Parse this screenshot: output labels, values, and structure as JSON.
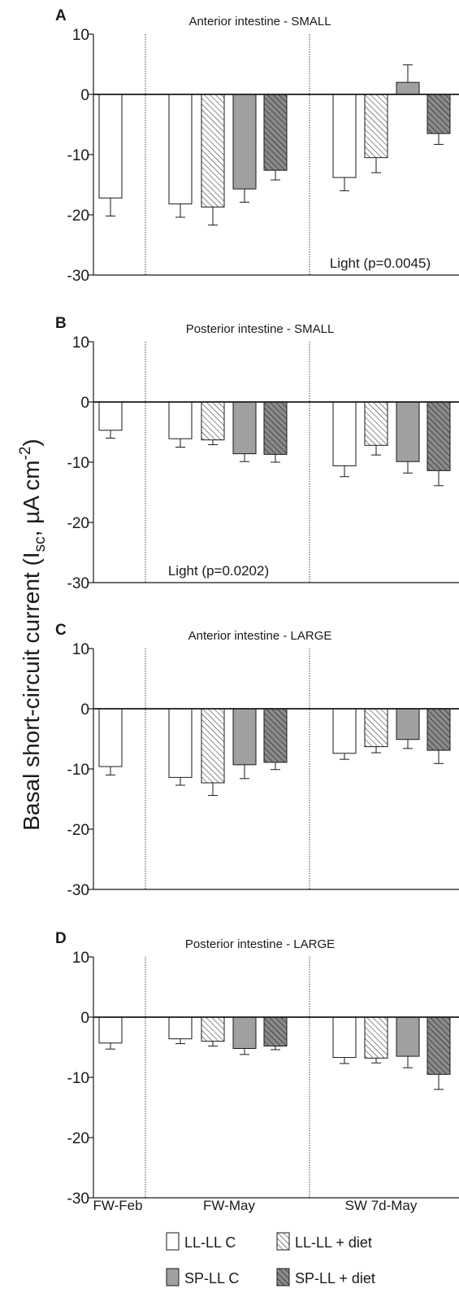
{
  "ylabel": {
    "prefix": "Basal short-circuit current (I",
    "sub1": "sc",
    "middle": ", µA cm",
    "sup": "-2",
    "suffix": ")"
  },
  "legend": [
    {
      "label": "LL-LL C",
      "fill": "#ffffff",
      "hatch": false
    },
    {
      "label": "LL-LL + diet",
      "fill": "#ffffff",
      "hatch": true
    },
    {
      "label": "SP-LL C",
      "fill": "#a0a0a0",
      "hatch": false
    },
    {
      "label": "SP-LL + diet",
      "fill": "#8a8a8a",
      "hatch": true
    }
  ],
  "colors": {
    "white": "#ffffff",
    "grey": "#a0a0a0",
    "dark_grey": "#8a8a8a",
    "ink": "#1a1a1a"
  },
  "chart_data": [
    {
      "type": "bar",
      "letter": "A",
      "title": "Anterior intestine - SMALL",
      "ylim": [
        -30,
        10
      ],
      "yticks": [
        "10",
        "0",
        "-10",
        "-20",
        "-30"
      ],
      "ytick_values": [
        10,
        0,
        -10,
        -20,
        -30
      ],
      "groups": [
        {
          "label": "FW-Feb",
          "bars": [
            {
              "series": "LL-LL C",
              "value": -17.2,
              "error": 3.0
            }
          ]
        },
        {
          "label": "FW-May",
          "bars": [
            {
              "series": "LL-LL C",
              "value": -18.2,
              "error": 2.2
            },
            {
              "series": "LL-LL + diet",
              "value": -18.7,
              "error": 3.0
            },
            {
              "series": "SP-LL C",
              "value": -15.7,
              "error": 2.2
            },
            {
              "series": "SP-LL + diet",
              "value": -12.6,
              "error": 1.6
            }
          ]
        },
        {
          "label": "SW 7d-May",
          "bars": [
            {
              "series": "LL-LL C",
              "value": -13.8,
              "error": 2.2
            },
            {
              "series": "LL-LL + diet",
              "value": -10.5,
              "error": 2.5
            },
            {
              "series": "SP-LL C",
              "value": 2.0,
              "error": 2.9
            },
            {
              "series": "SP-LL + diet",
              "value": -6.5,
              "error": 1.8
            }
          ]
        }
      ],
      "annotation": "Light (p=0.0045)",
      "annotation_pos": "bottom-right",
      "show_xlabels": false
    },
    {
      "type": "bar",
      "letter": "B",
      "title": "Posterior intestine - SMALL",
      "ylim": [
        -30,
        10
      ],
      "yticks": [
        "10",
        "0",
        "-10",
        "-20",
        "-30"
      ],
      "ytick_values": [
        10,
        0,
        -10,
        -20,
        -30
      ],
      "groups": [
        {
          "label": "FW-Feb",
          "bars": [
            {
              "series": "LL-LL C",
              "value": -4.7,
              "error": 1.3
            }
          ]
        },
        {
          "label": "FW-May",
          "bars": [
            {
              "series": "LL-LL C",
              "value": -6.1,
              "error": 1.4
            },
            {
              "series": "LL-LL + diet",
              "value": -6.3,
              "error": 0.8
            },
            {
              "series": "SP-LL C",
              "value": -8.6,
              "error": 1.3
            },
            {
              "series": "SP-LL + diet",
              "value": -8.7,
              "error": 1.3
            }
          ]
        },
        {
          "label": "SW 7d-May",
          "bars": [
            {
              "series": "LL-LL C",
              "value": -10.6,
              "error": 1.8
            },
            {
              "series": "LL-LL + diet",
              "value": -7.2,
              "error": 1.6
            },
            {
              "series": "SP-LL C",
              "value": -9.9,
              "error": 1.9
            },
            {
              "series": "SP-LL + diet",
              "value": -11.4,
              "error": 2.5
            }
          ]
        }
      ],
      "annotation": "Light (p=0.0202)",
      "annotation_pos": "bottom-center",
      "show_xlabels": false
    },
    {
      "type": "bar",
      "letter": "C",
      "title": "Anterior intestine - LARGE",
      "ylim": [
        -30,
        10
      ],
      "yticks": [
        "10",
        "0",
        "-10",
        "-20",
        "-30"
      ],
      "ytick_values": [
        10,
        0,
        -10,
        -20,
        -30
      ],
      "groups": [
        {
          "label": "FW-Feb",
          "bars": [
            {
              "series": "LL-LL C",
              "value": -9.6,
              "error": 1.4
            }
          ]
        },
        {
          "label": "FW-May",
          "bars": [
            {
              "series": "LL-LL C",
              "value": -11.4,
              "error": 1.3
            },
            {
              "series": "LL-LL + diet",
              "value": -12.3,
              "error": 2.1
            },
            {
              "series": "SP-LL C",
              "value": -9.3,
              "error": 2.3
            },
            {
              "series": "SP-LL + diet",
              "value": -8.9,
              "error": 1.2
            }
          ]
        },
        {
          "label": "SW 7d-May",
          "bars": [
            {
              "series": "LL-LL C",
              "value": -7.4,
              "error": 1.0
            },
            {
              "series": "LL-LL + diet",
              "value": -6.3,
              "error": 1.0
            },
            {
              "series": "SP-LL C",
              "value": -5.1,
              "error": 1.5
            },
            {
              "series": "SP-LL + diet",
              "value": -6.9,
              "error": 2.2
            }
          ]
        }
      ],
      "annotation": "",
      "annotation_pos": "",
      "show_xlabels": false
    },
    {
      "type": "bar",
      "letter": "D",
      "title": "Posterior intestine - LARGE",
      "ylim": [
        -30,
        10
      ],
      "yticks": [
        "10",
        "0",
        "-10",
        "-20",
        "-30"
      ],
      "ytick_values": [
        10,
        0,
        -10,
        -20,
        -30
      ],
      "groups": [
        {
          "label": "FW-Feb",
          "bars": [
            {
              "series": "LL-LL C",
              "value": -4.3,
              "error": 1.0
            }
          ]
        },
        {
          "label": "FW-May",
          "bars": [
            {
              "series": "LL-LL C",
              "value": -3.6,
              "error": 0.8
            },
            {
              "series": "LL-LL + diet",
              "value": -4.0,
              "error": 0.8
            },
            {
              "series": "SP-LL C",
              "value": -5.2,
              "error": 1.0
            },
            {
              "series": "SP-LL + diet",
              "value": -4.8,
              "error": 0.6
            }
          ]
        },
        {
          "label": "SW 7d-May",
          "bars": [
            {
              "series": "LL-LL C",
              "value": -6.7,
              "error": 1.0
            },
            {
              "series": "LL-LL + diet",
              "value": -6.8,
              "error": 0.8
            },
            {
              "series": "SP-LL C",
              "value": -6.5,
              "error": 1.9
            },
            {
              "series": "SP-LL + diet",
              "value": -9.5,
              "error": 2.5
            }
          ]
        }
      ],
      "annotation": "",
      "annotation_pos": "",
      "show_xlabels": true
    }
  ]
}
